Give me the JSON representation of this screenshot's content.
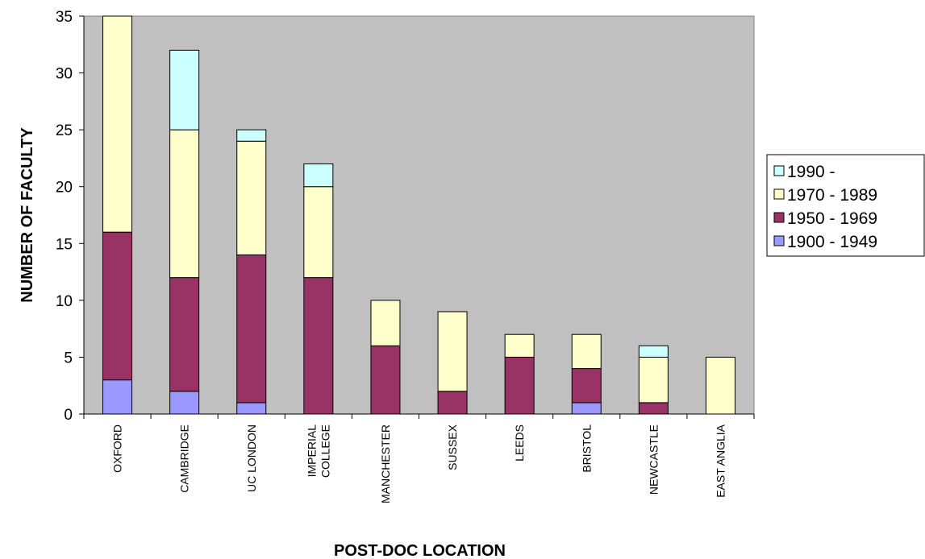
{
  "chart_data": {
    "type": "bar",
    "stacked": true,
    "title": "",
    "xlabel": "POST-DOC LOCATION",
    "ylabel": "NUMBER OF FACULTY",
    "ylim": [
      0,
      35
    ],
    "yticks": [
      0,
      5,
      10,
      15,
      20,
      25,
      30,
      35
    ],
    "grid": false,
    "legend_position": "right",
    "categories": [
      [
        "OXFORD"
      ],
      [
        "CAMBRIDGE"
      ],
      [
        "UC LONDON"
      ],
      [
        "IMPERIAL",
        "COLLEGE"
      ],
      [
        "MANCHESTER"
      ],
      [
        "SUSSEX"
      ],
      [
        "LEEDS"
      ],
      [
        "BRISTOL"
      ],
      [
        "NEWCASTLE"
      ],
      [
        "EAST ANGLIA"
      ]
    ],
    "series": [
      {
        "name": "1900 - 1949",
        "color": "#9999ff",
        "values": [
          3,
          2,
          1,
          0,
          0,
          0,
          0,
          1,
          0,
          0
        ]
      },
      {
        "name": "1950 - 1969",
        "color": "#993366",
        "values": [
          13,
          10,
          13,
          12,
          6,
          2,
          5,
          3,
          1,
          0
        ]
      },
      {
        "name": "1970 - 1989",
        "color": "#ffffcc",
        "values": [
          19,
          13,
          10,
          8,
          4,
          7,
          2,
          3,
          4,
          5
        ]
      },
      {
        "name": "1990 -",
        "color": "#ccffff",
        "values": [
          0,
          7,
          1,
          2,
          0,
          0,
          0,
          0,
          1,
          0
        ]
      }
    ],
    "legend_order": [
      3,
      2,
      1,
      0
    ],
    "plot_background": "#c0c0c0"
  }
}
